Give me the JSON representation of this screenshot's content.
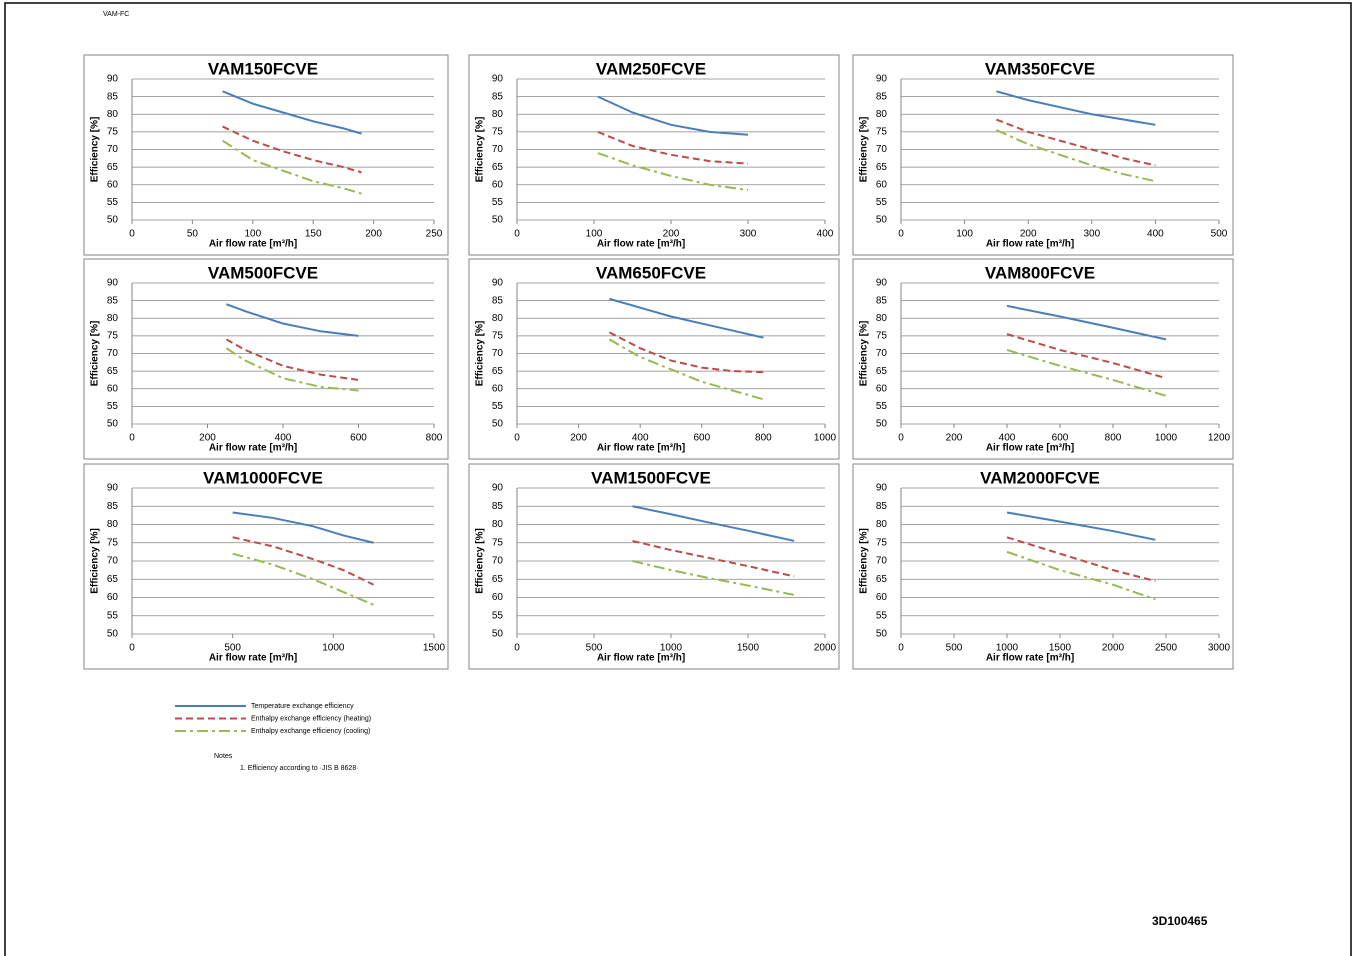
{
  "header": "VAM-FC",
  "legend": [
    {
      "name": "Temperature exchange efficiency",
      "color": "#4a7ebb",
      "style": "solid"
    },
    {
      "name": "Enthalpy exchange efficiency (heating)",
      "color": "#be4b48",
      "style": "dashed"
    },
    {
      "name": "Enthalpy exchange efficiency (cooling)",
      "color": "#98b954",
      "style": "dashdot"
    }
  ],
  "notes": {
    "title": "Notes",
    "items": [
      "1.  Efficiency according to ·JIS B 8628·"
    ]
  },
  "doc_number": "3D100465",
  "chart_data": [
    {
      "type": "line",
      "title": "VAM150FCVE",
      "x_label": "Air flow rate [m³/h]",
      "y_label": "Efficiency [%]",
      "x": [
        75,
        100,
        125,
        150,
        175,
        190
      ],
      "xlim": [
        0,
        250
      ],
      "xticks": [
        0,
        50,
        100,
        150,
        200,
        250
      ],
      "ylim": [
        50,
        90
      ],
      "yticks": [
        50,
        55,
        60,
        65,
        70,
        75,
        80,
        85,
        90
      ],
      "grid": true,
      "series": [
        {
          "values": [
            86.5,
            83,
            80.5,
            78,
            76,
            74.5
          ]
        },
        {
          "values": [
            76.5,
            72.5,
            69.5,
            67,
            65,
            63.5
          ]
        },
        {
          "values": [
            72.5,
            67,
            64,
            61,
            59,
            57.5
          ]
        }
      ]
    },
    {
      "type": "line",
      "title": "VAM250FCVE",
      "x_label": "Air flow rate [m³/h]",
      "y_label": "Efficiency [%]",
      "x": [
        105,
        150,
        200,
        250,
        300
      ],
      "xlim": [
        0,
        400
      ],
      "xticks": [
        0,
        100,
        200,
        300,
        400
      ],
      "ylim": [
        50,
        90
      ],
      "yticks": [
        50,
        55,
        60,
        65,
        70,
        75,
        80,
        85,
        90
      ],
      "grid": true,
      "series": [
        {
          "values": [
            85,
            80.5,
            77,
            75,
            74.2
          ]
        },
        {
          "values": [
            75,
            71,
            68.5,
            66.7,
            66
          ]
        },
        {
          "values": [
            69,
            65.5,
            62.5,
            60,
            58.5
          ]
        }
      ]
    },
    {
      "type": "line",
      "title": "VAM350FCVE",
      "x_label": "Air flow rate [m³/h]",
      "y_label": "Efficiency [%]",
      "x": [
        150,
        200,
        250,
        300,
        350,
        400
      ],
      "xlim": [
        0,
        500
      ],
      "xticks": [
        0,
        100,
        200,
        300,
        400,
        500
      ],
      "ylim": [
        50,
        90
      ],
      "yticks": [
        50,
        55,
        60,
        65,
        70,
        75,
        80,
        85,
        90
      ],
      "grid": true,
      "series": [
        {
          "values": [
            86.5,
            84,
            82,
            80,
            78.5,
            77
          ]
        },
        {
          "values": [
            78.5,
            75,
            72.5,
            70,
            67.5,
            65.5
          ]
        },
        {
          "values": [
            75.5,
            71.5,
            68.5,
            65.5,
            63,
            61
          ]
        }
      ]
    },
    {
      "type": "line",
      "title": "VAM500FCVE",
      "x_label": "Air flow rate [m³/h]",
      "y_label": "Efficiency [%]",
      "x": [
        250,
        300,
        400,
        500,
        600
      ],
      "xlim": [
        0,
        800
      ],
      "xticks": [
        0,
        200,
        400,
        600,
        800
      ],
      "ylim": [
        50,
        90
      ],
      "yticks": [
        50,
        55,
        60,
        65,
        70,
        75,
        80,
        85,
        90
      ],
      "grid": true,
      "series": [
        {
          "values": [
            84,
            82,
            78.5,
            76.3,
            75
          ]
        },
        {
          "values": [
            74,
            71,
            66.5,
            64,
            62.5
          ]
        },
        {
          "values": [
            71.5,
            68,
            63,
            60.5,
            59.5
          ]
        }
      ]
    },
    {
      "type": "line",
      "title": "VAM650FCVE",
      "x_label": "Air flow rate [m³/h]",
      "y_label": "Efficiency [%]",
      "x": [
        300,
        400,
        500,
        600,
        700,
        800
      ],
      "xlim": [
        0,
        1000
      ],
      "xticks": [
        0,
        200,
        400,
        600,
        800,
        1000
      ],
      "ylim": [
        50,
        90
      ],
      "yticks": [
        50,
        55,
        60,
        65,
        70,
        75,
        80,
        85,
        90
      ],
      "grid": true,
      "series": [
        {
          "values": [
            85.5,
            83,
            80.5,
            78.5,
            76.5,
            74.5
          ]
        },
        {
          "values": [
            76,
            71.5,
            68,
            66,
            65,
            64.7
          ]
        },
        {
          "values": [
            74,
            69,
            65.5,
            62,
            59.5,
            57
          ]
        }
      ]
    },
    {
      "type": "line",
      "title": "VAM800FCVE",
      "x_label": "Air flow rate [m³/h]",
      "y_label": "Efficiency [%]",
      "x": [
        400,
        600,
        800,
        1000
      ],
      "xlim": [
        0,
        1200
      ],
      "xticks": [
        0,
        200,
        400,
        600,
        800,
        1000,
        1200
      ],
      "ylim": [
        50,
        90
      ],
      "yticks": [
        50,
        55,
        60,
        65,
        70,
        75,
        80,
        85,
        90
      ],
      "grid": true,
      "series": [
        {
          "values": [
            83.5,
            80.5,
            77.3,
            74
          ]
        },
        {
          "values": [
            75.5,
            71,
            67.3,
            63
          ]
        },
        {
          "values": [
            71,
            66.5,
            62.5,
            58
          ]
        }
      ]
    },
    {
      "type": "line",
      "title": "VAM1000FCVE",
      "x_label": "Air flow rate [m³/h]",
      "y_label": "Efficiency [%]",
      "x": [
        500,
        700,
        900,
        1050,
        1200
      ],
      "xlim": [
        0,
        1500
      ],
      "xticks": [
        0,
        500,
        1000,
        1500
      ],
      "ylim": [
        50,
        90
      ],
      "yticks": [
        50,
        55,
        60,
        65,
        70,
        75,
        80,
        85,
        90
      ],
      "grid": true,
      "series": [
        {
          "values": [
            83.3,
            81.8,
            79.5,
            77,
            75
          ]
        },
        {
          "values": [
            76.5,
            74,
            70.5,
            67.5,
            63.5
          ]
        },
        {
          "values": [
            72,
            69,
            65,
            61.5,
            58
          ]
        }
      ]
    },
    {
      "type": "line",
      "title": "VAM1500FCVE",
      "x_label": "Air flow rate [m³/h]",
      "y_label": "Efficiency [%]",
      "x": [
        750,
        1000,
        1250,
        1500,
        1800
      ],
      "xlim": [
        0,
        2000
      ],
      "xticks": [
        0,
        500,
        1000,
        1500,
        2000
      ],
      "ylim": [
        50,
        90
      ],
      "yticks": [
        50,
        55,
        60,
        65,
        70,
        75,
        80,
        85,
        90
      ],
      "grid": true,
      "series": [
        {
          "values": [
            85,
            82.8,
            80.5,
            78.3,
            75.5
          ]
        },
        {
          "values": [
            75.5,
            73,
            70.8,
            68.6,
            65.8
          ]
        },
        {
          "values": [
            70,
            67.5,
            65.3,
            63.3,
            60.7
          ]
        }
      ]
    },
    {
      "type": "line",
      "title": "VAM2000FCVE",
      "x_label": "Air flow rate [m³/h]",
      "y_label": "Efficiency [%]",
      "x": [
        1000,
        1500,
        2000,
        2400
      ],
      "xlim": [
        0,
        3000
      ],
      "xticks": [
        0,
        500,
        1000,
        1500,
        2000,
        2500,
        3000
      ],
      "ylim": [
        50,
        90
      ],
      "yticks": [
        50,
        55,
        60,
        65,
        70,
        75,
        80,
        85,
        90
      ],
      "grid": true,
      "series": [
        {
          "values": [
            83.3,
            80.8,
            78.2,
            75.8
          ]
        },
        {
          "values": [
            76.5,
            72,
            67.5,
            64.5
          ]
        },
        {
          "values": [
            72.5,
            67.5,
            63.5,
            59.5
          ]
        }
      ]
    }
  ]
}
